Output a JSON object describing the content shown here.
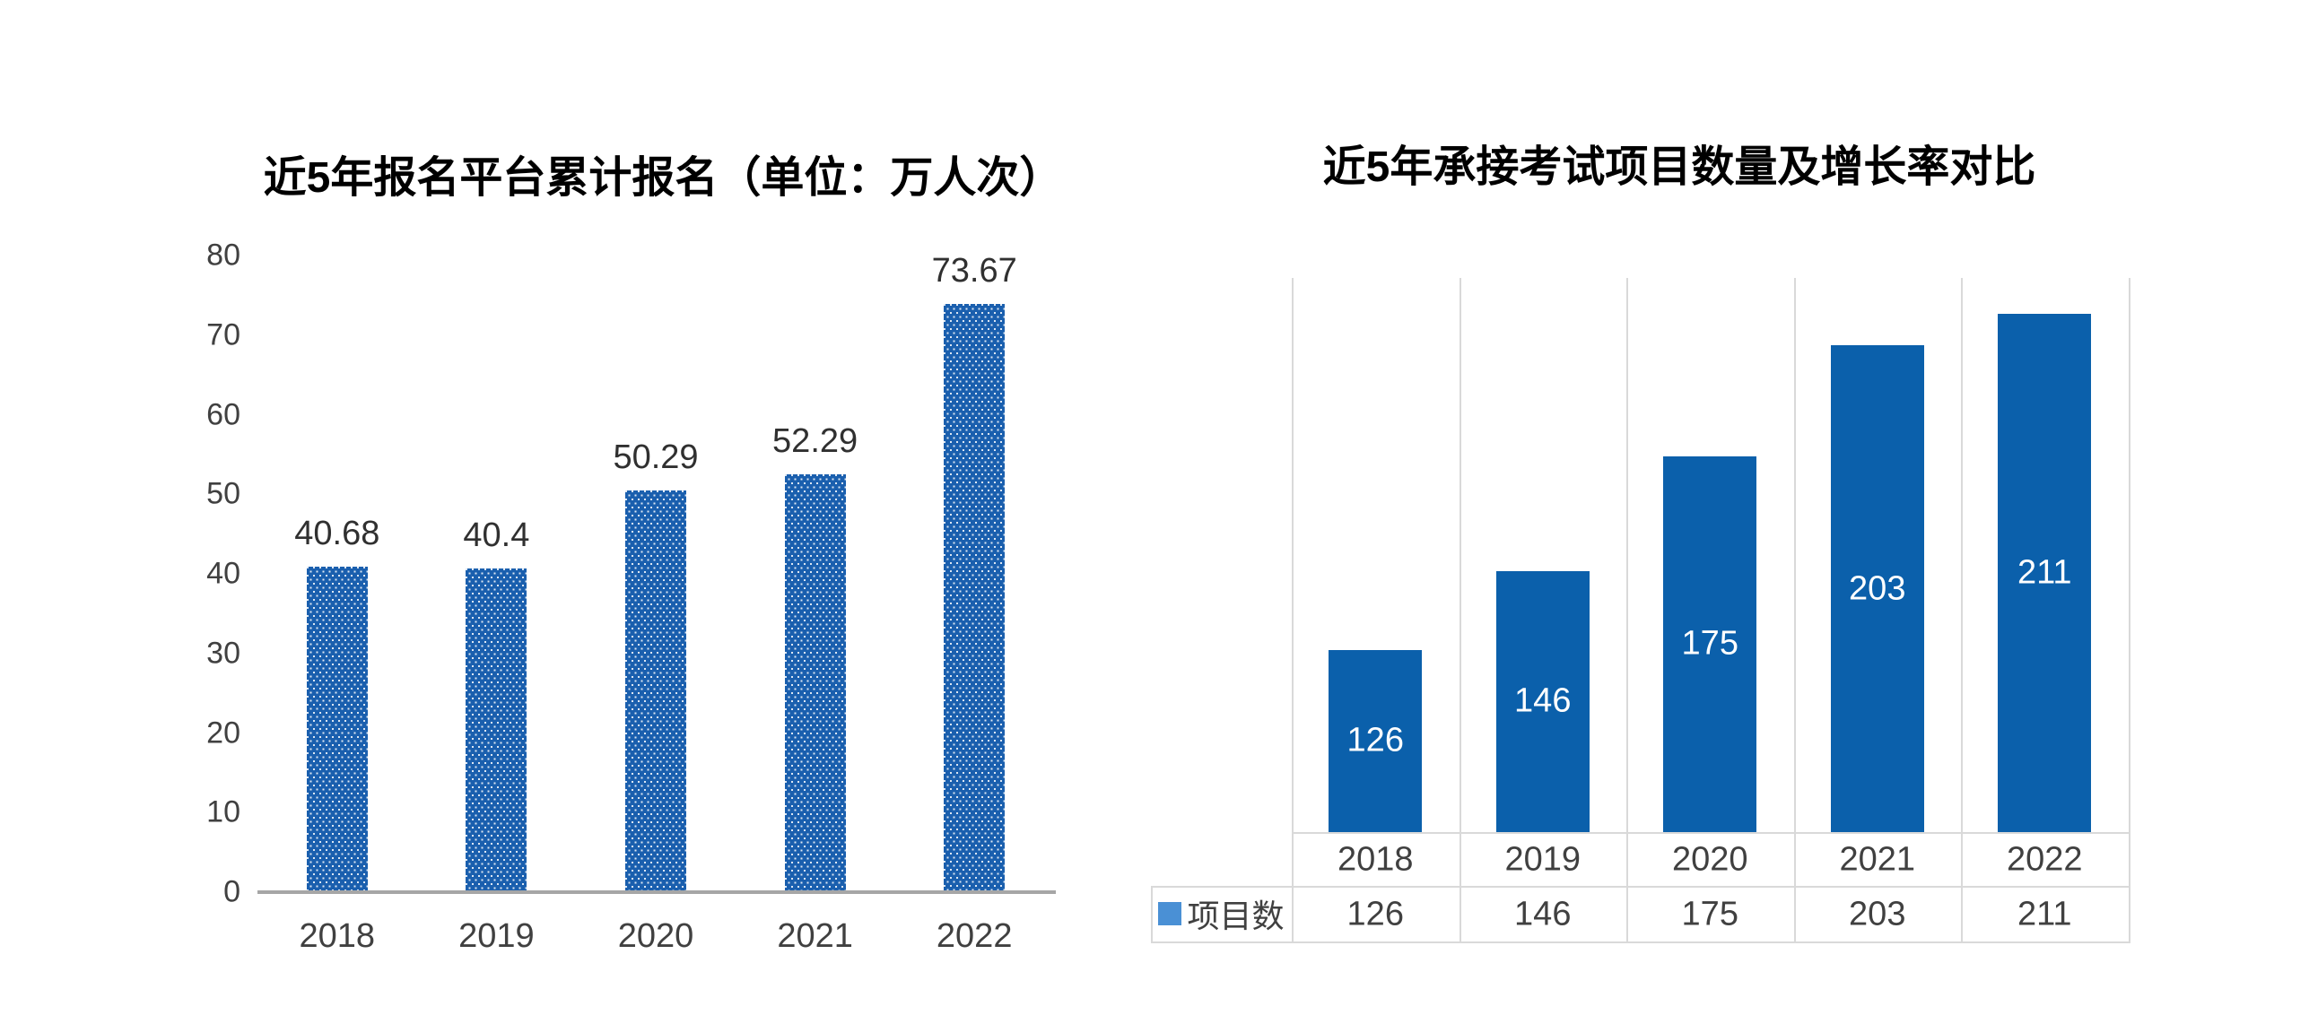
{
  "page": {
    "background": "#ffffff"
  },
  "chart_data": [
    {
      "type": "bar",
      "title": "近5年报名平台累计报名（单位：万人次）",
      "categories": [
        "2018",
        "2019",
        "2020",
        "2021",
        "2022"
      ],
      "values": [
        40.68,
        40.4,
        50.29,
        52.29,
        73.67
      ],
      "value_labels": [
        "40.68",
        "40.4",
        "50.29",
        "52.29",
        "73.67"
      ],
      "xlabel": "",
      "ylabel": "",
      "ylim": [
        0,
        80
      ],
      "yticks": [
        "0",
        "10",
        "20",
        "30",
        "40",
        "50",
        "60",
        "70",
        "80"
      ],
      "grid": false,
      "legend_position": "none",
      "value_label_position": "above-bar",
      "bar_color": "#1a5fae",
      "bar_pattern": "white-dots",
      "axis_line_color": "#a6a6a6",
      "tick_color": "#404040",
      "value_label_color": "#303030"
    },
    {
      "type": "bar",
      "title": "近5年承接考试项目数量及增长率对比",
      "categories": [
        "2018",
        "2019",
        "2020",
        "2021",
        "2022"
      ],
      "series": [
        {
          "name": "项目数",
          "values": [
            126,
            146,
            175,
            203,
            211
          ]
        }
      ],
      "value_labels": [
        "126",
        "146",
        "175",
        "203",
        "211"
      ],
      "xlabel": "",
      "ylabel": "",
      "ylim": [
        80,
        220
      ],
      "yticks": [],
      "grid": "vertical-only",
      "gridline_color": "#d9d9d9",
      "value_label_position": "inside-center",
      "value_label_color": "#ffffff",
      "bar_color": "#0b60ab",
      "legend": {
        "name": "项目数",
        "marker_color": "#4a90d5"
      },
      "data_table": {
        "header_row": [
          "2018",
          "2019",
          "2020",
          "2021",
          "2022"
        ],
        "rows": [
          {
            "name": "项目数",
            "values": [
              "126",
              "146",
              "175",
              "203",
              "211"
            ]
          }
        ]
      }
    }
  ]
}
